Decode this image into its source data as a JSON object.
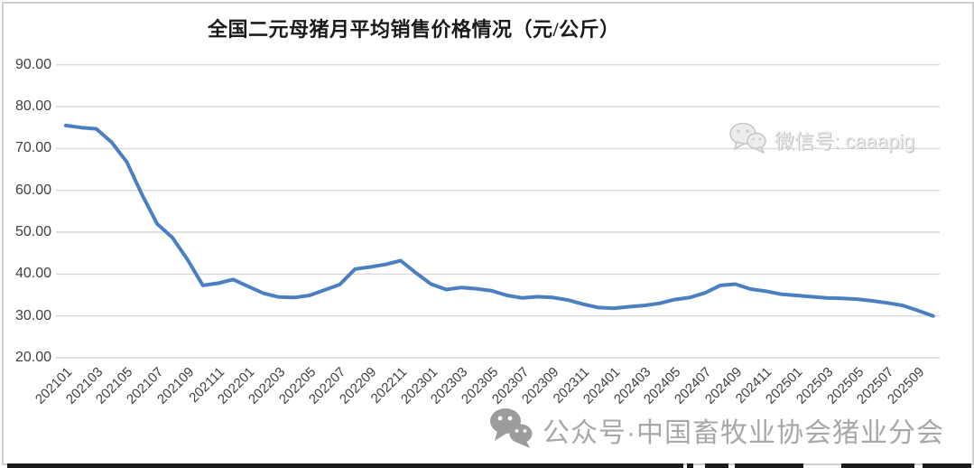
{
  "title": "全国二元母猪月平均销售价格情况（元/公斤）",
  "watermarks": {
    "top": {
      "icon": "wechat-icon",
      "label": "微信号: caaapig"
    },
    "bottom": {
      "icon": "wechat-icon",
      "label": "公众号·中国畜牧业协会猪业分会"
    }
  },
  "chart_data": {
    "type": "line",
    "title": "全国二元母猪月平均销售价格情况（元/公斤）",
    "x": [
      "202101",
      "202102",
      "202103",
      "202104",
      "202105",
      "202106",
      "202107",
      "202108",
      "202109",
      "202110",
      "202111",
      "202112",
      "202201",
      "202202",
      "202203",
      "202204",
      "202205",
      "202206",
      "202207",
      "202208",
      "202209",
      "202210",
      "202211",
      "202212",
      "202301",
      "202302",
      "202303",
      "202304",
      "202305",
      "202306",
      "202307",
      "202308",
      "202309",
      "202310",
      "202311",
      "202312",
      "202401",
      "202402",
      "202403",
      "202404",
      "202405",
      "202406",
      "202407",
      "202408",
      "202409",
      "202410",
      "202411",
      "202412",
      "202501",
      "202502",
      "202503",
      "202504",
      "202505",
      "202506",
      "202507",
      "202508",
      "202509",
      "202510"
    ],
    "values": [
      75.5,
      75.0,
      74.7,
      71.5,
      66.8,
      59.0,
      52.0,
      48.7,
      43.4,
      37.3,
      37.8,
      38.7,
      37.0,
      35.4,
      34.5,
      34.4,
      34.9,
      36.2,
      37.5,
      41.2,
      41.7,
      42.3,
      43.2,
      40.3,
      37.6,
      36.3,
      36.8,
      36.5,
      36.0,
      34.9,
      34.3,
      34.6,
      34.4,
      33.8,
      32.8,
      32.0,
      31.8,
      32.2,
      32.5,
      33.0,
      33.9,
      34.4,
      35.5,
      37.3,
      37.6,
      36.4,
      35.9,
      35.2,
      34.9,
      34.6,
      34.3,
      34.2,
      34.0,
      33.6,
      33.1,
      32.5,
      31.3,
      30.0
    ],
    "x_tick_labels": [
      "202101",
      "202103",
      "202105",
      "202107",
      "202109",
      "202111",
      "202201",
      "202203",
      "202205",
      "202207",
      "202209",
      "202211",
      "202301",
      "202303",
      "202305",
      "202307",
      "202309",
      "202311",
      "202401",
      "202403",
      "202405",
      "202407",
      "202409",
      "202411",
      "202501",
      "202503",
      "202505",
      "202507",
      "202509"
    ],
    "y_ticks": [
      {
        "value": 90,
        "label": "90.00"
      },
      {
        "value": 80,
        "label": "80.00"
      },
      {
        "value": 70,
        "label": "70.00"
      },
      {
        "value": 60,
        "label": "60.00"
      },
      {
        "value": 50,
        "label": "50.00"
      },
      {
        "value": 40,
        "label": "40.00"
      },
      {
        "value": 30,
        "label": "30.00"
      },
      {
        "value": 20,
        "label": "20.00"
      }
    ],
    "ylim": [
      20,
      90
    ],
    "grid": true,
    "legend": "none",
    "line_color": "#4a7fc1",
    "gridline_color": "#d9d9d9",
    "axis_label_color": "#404040"
  }
}
